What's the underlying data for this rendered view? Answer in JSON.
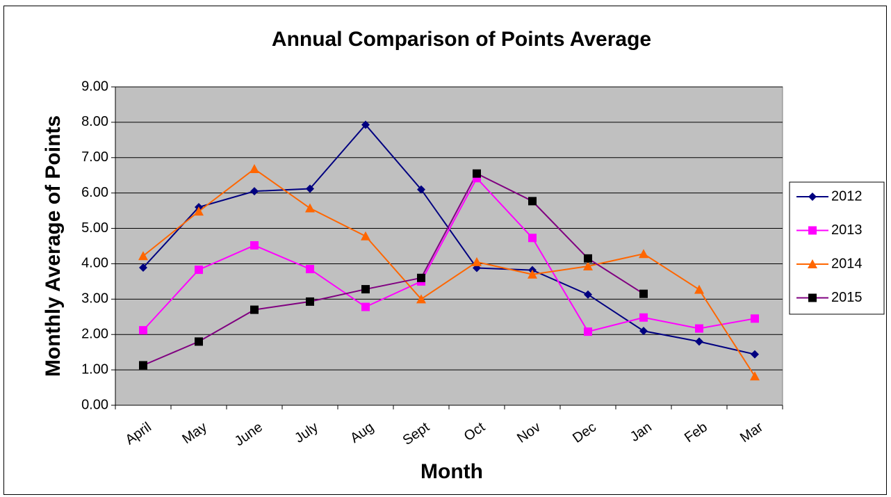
{
  "chart_data": {
    "type": "line",
    "title": "Annual Comparison of Points Average",
    "x_label": "Month",
    "y_label": "Monthly Average of Points",
    "categories": [
      "April",
      "May",
      "June",
      "July",
      "Aug",
      "Sept",
      "Oct",
      "Nov",
      "Dec",
      "Jan",
      "Feb",
      "Mar"
    ],
    "series": [
      {
        "name": "2012",
        "color": "#000080",
        "marker": "diamond",
        "marker_color": "#000080",
        "values": [
          3.89,
          5.6,
          6.05,
          6.12,
          7.93,
          6.1,
          3.88,
          3.82,
          3.13,
          2.1,
          1.8,
          1.44
        ]
      },
      {
        "name": "2013",
        "color": "#ff00ff",
        "marker": "square",
        "marker_color": "#ff00ff",
        "values": [
          2.12,
          3.83,
          4.52,
          3.85,
          2.78,
          3.5,
          6.42,
          4.73,
          2.08,
          2.48,
          2.17,
          2.45
        ]
      },
      {
        "name": "2014",
        "color": "#ff6600",
        "marker": "triangle",
        "marker_color": "#ff6600",
        "values": [
          4.22,
          5.48,
          6.68,
          5.57,
          4.78,
          3.0,
          4.05,
          3.7,
          3.93,
          4.28,
          3.27,
          0.82
        ]
      },
      {
        "name": "2015",
        "color": "#800080",
        "marker": "square",
        "marker_color": "#000000",
        "values": [
          1.13,
          1.8,
          2.7,
          2.93,
          3.28,
          3.6,
          6.55,
          5.77,
          4.15,
          3.15,
          null,
          null
        ]
      }
    ],
    "ylim": [
      0,
      9
    ],
    "yticks": [
      {
        "value": 0,
        "label": "0.00"
      },
      {
        "value": 1,
        "label": "1.00"
      },
      {
        "value": 2,
        "label": "2.00"
      },
      {
        "value": 3,
        "label": "3.00"
      },
      {
        "value": 4,
        "label": "4.00"
      },
      {
        "value": 5,
        "label": "5.00"
      },
      {
        "value": 6,
        "label": "6.00"
      },
      {
        "value": 7,
        "label": "7.00"
      },
      {
        "value": 8,
        "label": "8.00"
      },
      {
        "value": 9,
        "label": "9.00"
      }
    ],
    "grid": true,
    "plot_background": "#c0c0c0",
    "legend": "right"
  }
}
